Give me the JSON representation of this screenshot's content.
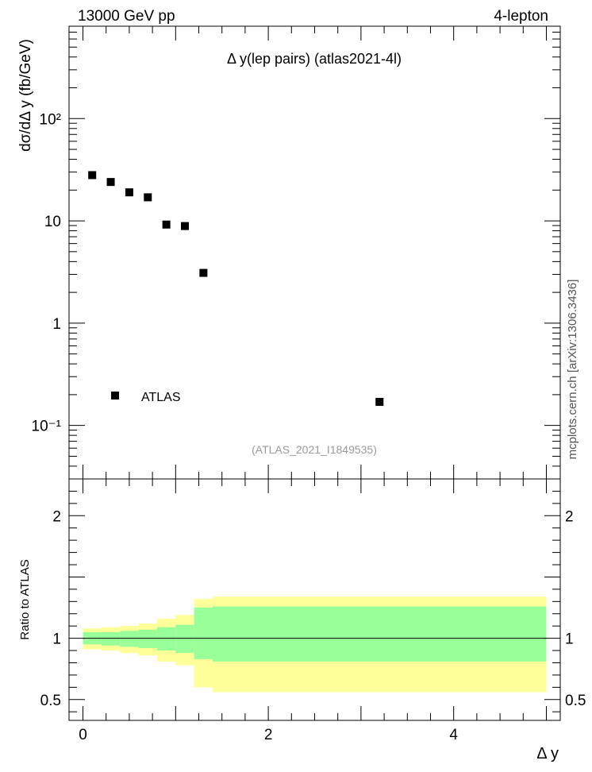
{
  "header": {
    "left_label": "13000 GeV pp",
    "right_label": "4-lepton"
  },
  "side_label": "mcplots.cern.ch [arXiv:1306.3436]",
  "colors": {
    "band_inner": "#99ff99",
    "band_outer": "#ffff99",
    "marker": "#000000",
    "reference_line": "#000000",
    "watermark": "#999999"
  },
  "chart_data": [
    {
      "type": "scatter",
      "panel": "main",
      "title": "Δ y(lep pairs) (atlas2021-4l)",
      "ylabel": "dσ/dΔ y (fb/GeV)",
      "xlabel": "",
      "yscale": "log",
      "xlim": [
        -0.15,
        5.15
      ],
      "ylim": [
        0.03,
        800
      ],
      "y_ticks": [
        {
          "value": 0.1,
          "label": "10⁻¹"
        },
        {
          "value": 1,
          "label": "1"
        },
        {
          "value": 10,
          "label": "10"
        },
        {
          "value": 100,
          "label": "10²"
        }
      ],
      "series": [
        {
          "name": "ATLAS",
          "marker": "square",
          "x": [
            0.1,
            0.3,
            0.5,
            0.7,
            0.9,
            1.1,
            1.3,
            3.2
          ],
          "y": [
            28,
            24,
            19,
            17,
            9.2,
            8.9,
            3.1,
            0.17
          ]
        }
      ],
      "legend": {
        "position": "bottom-left",
        "entries": [
          "ATLAS"
        ]
      },
      "annotation": "(ATLAS_2021_I1849535)"
    },
    {
      "type": "area",
      "panel": "ratio",
      "ylabel": "Ratio to ATLAS",
      "xlabel": "Δ y",
      "xlim": [
        -0.15,
        5.15
      ],
      "ylim": [
        0.33,
        2.3
      ],
      "y_ticks": [
        {
          "value": 0.5,
          "label": "0.5"
        },
        {
          "value": 1,
          "label": "1"
        },
        {
          "value": 2,
          "label": "2"
        }
      ],
      "x_ticks": [
        {
          "value": 0,
          "label": "0"
        },
        {
          "value": 2,
          "label": "2"
        },
        {
          "value": 4,
          "label": "4"
        }
      ],
      "reference": 1,
      "bins": [
        {
          "lo": 0.0,
          "hi": 0.2,
          "inner": [
            0.95,
            1.05
          ],
          "outer": [
            0.91,
            1.08
          ]
        },
        {
          "lo": 0.2,
          "hi": 0.4,
          "inner": [
            0.94,
            1.05
          ],
          "outer": [
            0.9,
            1.09
          ]
        },
        {
          "lo": 0.4,
          "hi": 0.6,
          "inner": [
            0.93,
            1.06
          ],
          "outer": [
            0.88,
            1.1
          ]
        },
        {
          "lo": 0.6,
          "hi": 0.8,
          "inner": [
            0.92,
            1.07
          ],
          "outer": [
            0.86,
            1.12
          ]
        },
        {
          "lo": 0.8,
          "hi": 1.0,
          "inner": [
            0.9,
            1.09
          ],
          "outer": [
            0.81,
            1.16
          ]
        },
        {
          "lo": 1.0,
          "hi": 1.2,
          "inner": [
            0.88,
            1.11
          ],
          "outer": [
            0.78,
            1.19
          ]
        },
        {
          "lo": 1.2,
          "hi": 1.4,
          "inner": [
            0.83,
            1.25
          ],
          "outer": [
            0.6,
            1.32
          ]
        },
        {
          "lo": 1.4,
          "hi": 5.0,
          "inner": [
            0.81,
            1.26
          ],
          "outer": [
            0.56,
            1.34
          ]
        }
      ]
    }
  ]
}
